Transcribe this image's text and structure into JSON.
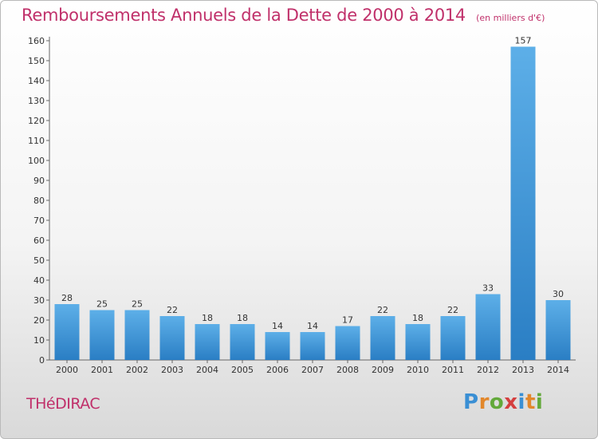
{
  "title": "Remboursements Annuels de la Dette de 2000 à 2014",
  "subtitle": "(en milliers d'€)",
  "location": "THéDIRAC",
  "brand": {
    "letters": [
      "P",
      "r",
      "o",
      "x",
      "i",
      "t",
      "i"
    ],
    "colors": [
      "#3a8fd4",
      "#e2872b",
      "#63a93b",
      "#d43f3f",
      "#3a8fd4",
      "#e2872b",
      "#63a93b"
    ]
  },
  "colors": {
    "bar_light": "#5dafe8",
    "bar_dark": "#2a7ec4",
    "title": "#c0306a"
  },
  "chart_data": {
    "type": "bar",
    "categories": [
      "2000",
      "2001",
      "2002",
      "2003",
      "2004",
      "2005",
      "2006",
      "2007",
      "2008",
      "2009",
      "2010",
      "2011",
      "2012",
      "2013",
      "2014"
    ],
    "values": [
      28,
      25,
      25,
      22,
      18,
      18,
      14,
      14,
      17,
      22,
      18,
      22,
      33,
      157,
      30
    ],
    "yticks": [
      0,
      10,
      20,
      30,
      40,
      50,
      60,
      70,
      80,
      90,
      100,
      110,
      120,
      130,
      140,
      150,
      160
    ],
    "ylim": [
      0,
      160
    ],
    "grid": false,
    "legend": "none"
  }
}
